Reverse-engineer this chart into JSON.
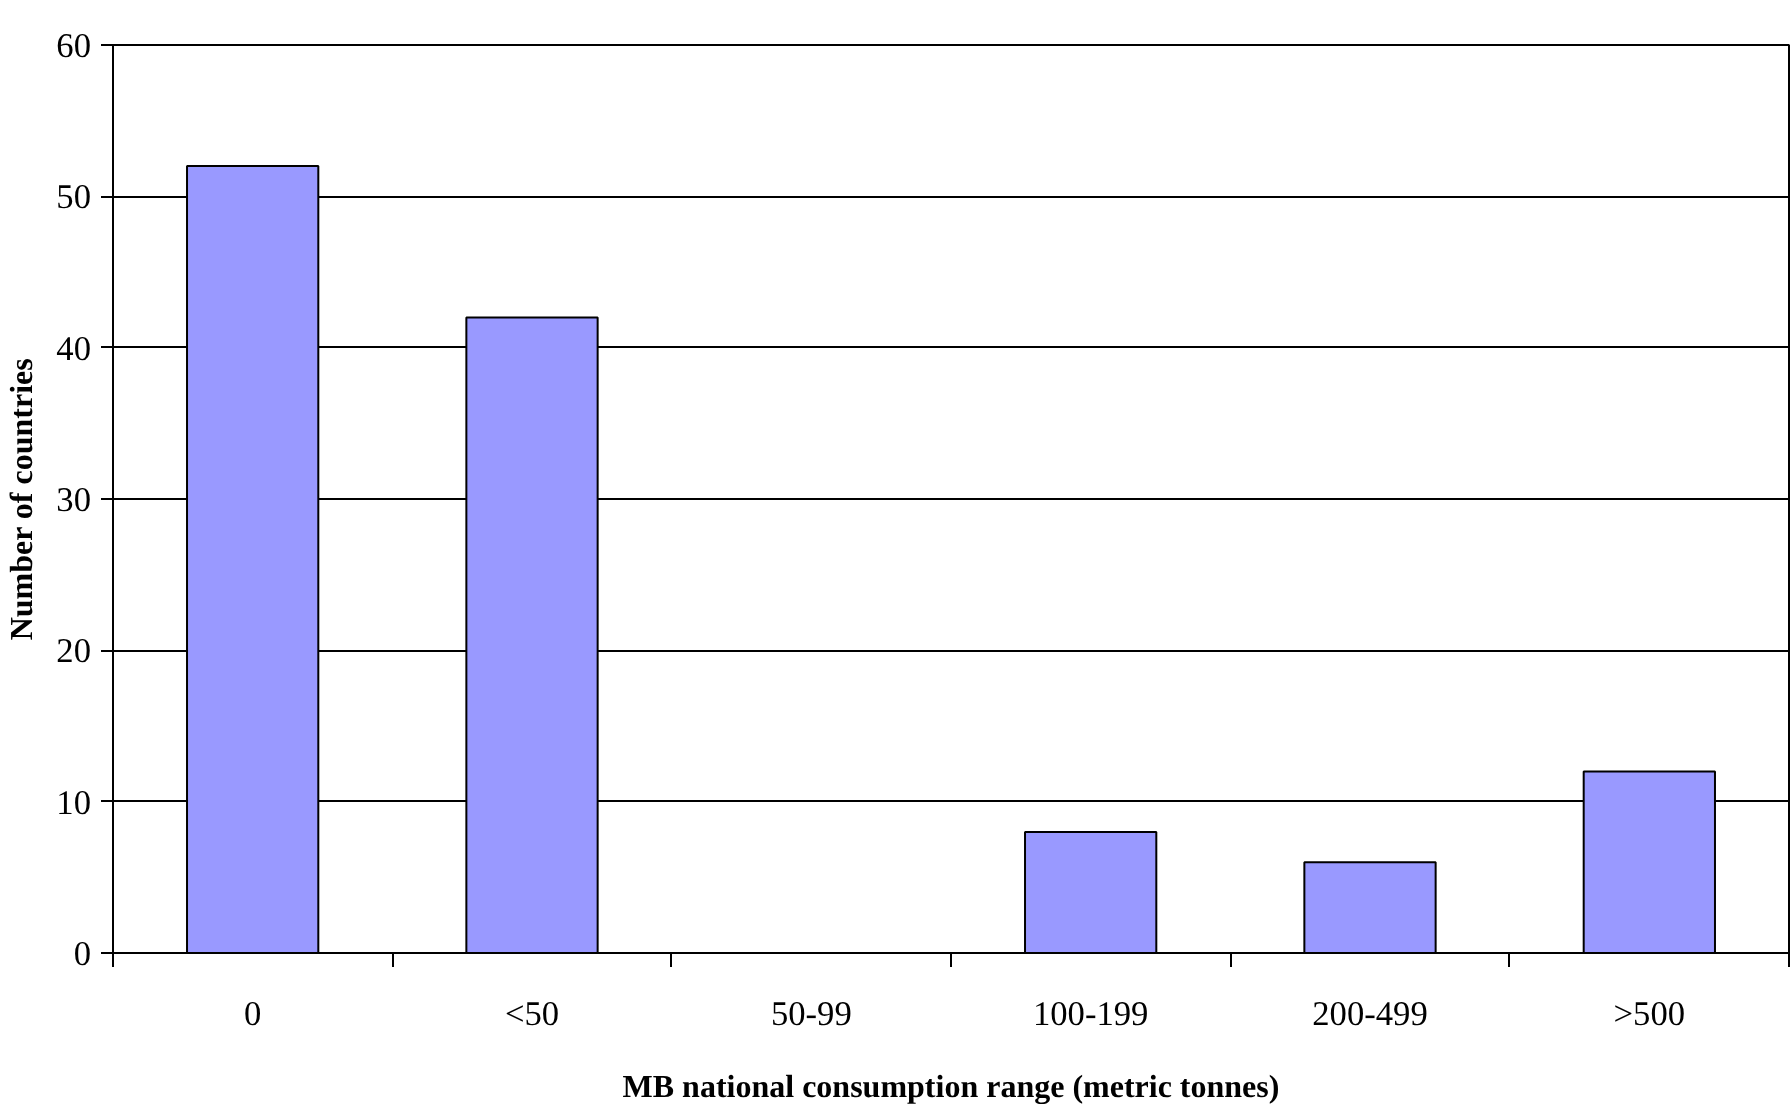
{
  "chart_data": {
    "type": "bar",
    "xlabel": "MB national consumption range (metric tonnes)",
    "ylabel": "Number of countries",
    "categories": [
      "0",
      "<50",
      "50-99",
      "100-199",
      "200-499",
      ">500"
    ],
    "values": [
      52,
      42,
      0,
      8,
      6,
      12
    ],
    "color": "#9999ff",
    "ylim": [
      0,
      60
    ],
    "yticks": [
      0,
      10,
      20,
      30,
      40,
      50,
      60
    ],
    "grid": "y"
  }
}
